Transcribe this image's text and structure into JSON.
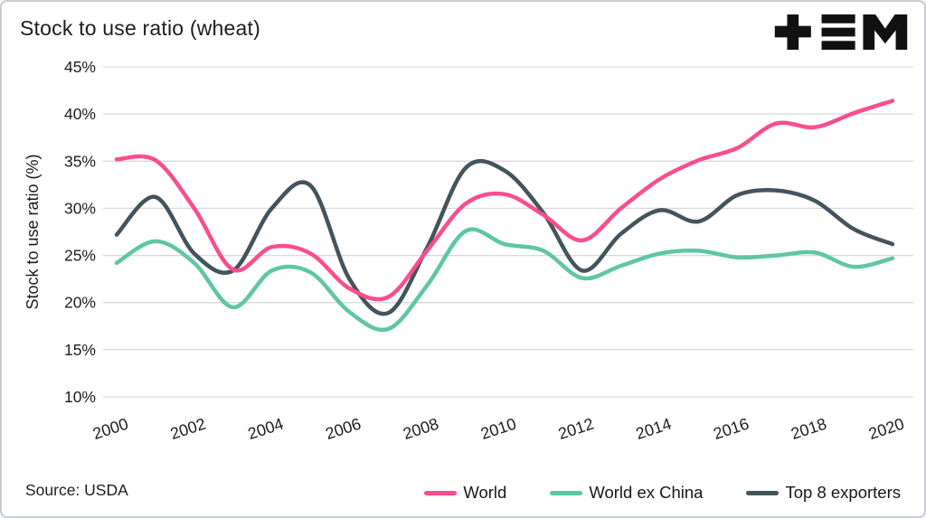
{
  "header": {
    "title": "Stock to use ratio (wheat)",
    "logo_icon": "tem-logo"
  },
  "footer": {
    "source": "Source: USDA"
  },
  "chart_data": {
    "type": "line",
    "title": "Stock to use ratio (wheat)",
    "xlabel": "",
    "ylabel": "Stock to use ratio (%)",
    "x": [
      2000,
      2001,
      2002,
      2003,
      2004,
      2005,
      2006,
      2007,
      2008,
      2009,
      2010,
      2011,
      2012,
      2013,
      2014,
      2015,
      2016,
      2017,
      2018,
      2019,
      2020
    ],
    "xticks": [
      2000,
      2002,
      2004,
      2006,
      2008,
      2010,
      2012,
      2014,
      2016,
      2018,
      2020
    ],
    "yticks": [
      10,
      15,
      20,
      25,
      30,
      35,
      40,
      45
    ],
    "ytick_suffix": "%",
    "ylim": [
      10,
      45
    ],
    "grid": "horizontal",
    "legend_position": "bottom",
    "colors": {
      "grid": "#d9d9d9",
      "text": "#1d1d1b",
      "background": "#ffffff"
    },
    "series": [
      {
        "name": "World",
        "color": "#fb4d8e",
        "values": [
          35.2,
          35.1,
          30.0,
          23.5,
          25.9,
          25.2,
          21.5,
          20.6,
          25.5,
          30.5,
          31.5,
          29.3,
          26.6,
          30.0,
          33.1,
          35.1,
          36.4,
          39.0,
          38.6,
          40.1,
          41.4
        ]
      },
      {
        "name": "World ex China",
        "color": "#5ec7a2",
        "values": [
          24.2,
          26.5,
          24.2,
          19.5,
          23.4,
          23.2,
          19.0,
          17.2,
          21.8,
          27.6,
          26.2,
          25.5,
          22.6,
          23.9,
          25.2,
          25.5,
          24.8,
          25.0,
          25.3,
          23.8,
          24.7
        ]
      },
      {
        "name": "Top 8 exporters",
        "color": "#44545c",
        "values": [
          27.2,
          31.2,
          25.2,
          23.4,
          30.0,
          32.4,
          22.5,
          18.9,
          25.8,
          34.3,
          34.0,
          29.5,
          23.4,
          27.3,
          29.8,
          28.6,
          31.4,
          31.9,
          30.8,
          27.8,
          26.2
        ]
      }
    ]
  }
}
